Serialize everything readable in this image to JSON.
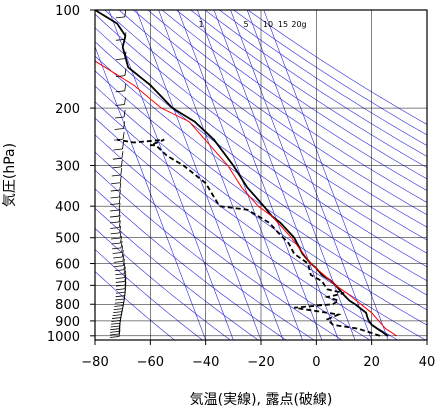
{
  "chart_data": {
    "type": "line",
    "title": "",
    "xlabel": "気温(実線), 露点(破線)",
    "ylabel": "気圧(hPa)",
    "xlim": [
      -80,
      40
    ],
    "ylim": [
      1030,
      100
    ],
    "y_scale": "log",
    "x_ticks": [
      -80,
      -60,
      -40,
      -20,
      0,
      20,
      40
    ],
    "x_tick_labels": [
      "−80",
      "−60",
      "−40",
      "−20",
      "0",
      "20",
      "40"
    ],
    "y_ticks": [
      100,
      200,
      300,
      400,
      500,
      600,
      700,
      800,
      900,
      1000
    ],
    "y_tick_labels": [
      "100",
      "200",
      "300",
      "400",
      "500",
      "600",
      "700",
      "800",
      "900",
      "1000"
    ],
    "grid": true,
    "mixing_ratio_labels": [
      "1",
      "5",
      "10",
      "15",
      "20g"
    ],
    "colors": {
      "temperature": "#000000",
      "dewpoint": "#000000",
      "parcel": "#ff0000",
      "background_lines": "#2828e0",
      "grid": "#000000"
    },
    "series": [
      {
        "kind": "temperature",
        "style": "solid",
        "points": [
          [
            26,
            1000
          ],
          [
            25,
            990
          ],
          [
            24,
            975
          ],
          [
            22,
            950
          ],
          [
            20,
            925
          ],
          [
            19,
            900
          ],
          [
            18.5,
            880
          ],
          [
            18,
            850
          ],
          [
            14,
            800
          ],
          [
            12,
            780
          ],
          [
            10,
            750
          ],
          [
            7,
            700
          ],
          [
            5,
            675
          ],
          [
            2,
            650
          ],
          [
            0,
            620
          ],
          [
            -2,
            600
          ],
          [
            -5,
            560
          ],
          [
            -8,
            500
          ],
          [
            -13,
            450
          ],
          [
            -16,
            430
          ],
          [
            -19,
            400
          ],
          [
            -25,
            350
          ],
          [
            -30,
            300
          ],
          [
            -37,
            250
          ],
          [
            -44,
            220
          ],
          [
            -52,
            200
          ],
          [
            -60,
            170
          ],
          [
            -68,
            150
          ],
          [
            -70,
            130
          ],
          [
            -69,
            120
          ],
          [
            -72,
            110
          ],
          [
            -80,
            100
          ]
        ]
      },
      {
        "kind": "dewpoint",
        "style": "dashed",
        "points": [
          [
            23,
            1000
          ],
          [
            20,
            980
          ],
          [
            15,
            950
          ],
          [
            6,
            925
          ],
          [
            4,
            890
          ],
          [
            8,
            860
          ],
          [
            -8,
            820
          ],
          [
            6,
            800
          ],
          [
            8,
            780
          ],
          [
            4,
            760
          ],
          [
            10,
            740
          ],
          [
            4,
            720
          ],
          [
            3,
            700
          ],
          [
            2,
            680
          ],
          [
            -2,
            650
          ],
          [
            -3,
            600
          ],
          [
            -8,
            560
          ],
          [
            -10,
            520
          ],
          [
            -14,
            480
          ],
          [
            -17,
            450
          ],
          [
            -25,
            410
          ],
          [
            -35,
            400
          ],
          [
            -40,
            340
          ],
          [
            -48,
            300
          ],
          [
            -54,
            280
          ],
          [
            -58,
            260
          ],
          [
            -60,
            260
          ],
          [
            -55,
            250
          ],
          [
            -66,
            255
          ],
          [
            -72,
            250
          ]
        ]
      },
      {
        "kind": "parcel",
        "style": "solid",
        "points": [
          [
            29,
            1000
          ],
          [
            25,
            950
          ],
          [
            20,
            850
          ],
          [
            12,
            750
          ],
          [
            7,
            700
          ],
          [
            -2,
            600
          ],
          [
            -9,
            500
          ],
          [
            -16,
            430
          ],
          [
            -21,
            400
          ],
          [
            -27,
            350
          ],
          [
            -32,
            300
          ],
          [
            -46,
            220
          ],
          [
            -56,
            200
          ],
          [
            -66,
            170
          ],
          [
            -82,
            140
          ]
        ]
      }
    ]
  }
}
